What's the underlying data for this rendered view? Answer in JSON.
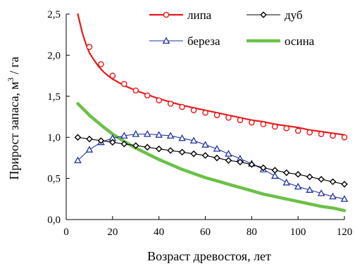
{
  "chart_data": {
    "type": "line",
    "xlabel": "Возраст  древостоя, лет",
    "ylabel_main": "Прирост  запаса, м",
    "ylabel_sup": "3",
    "ylabel_tail": " / га",
    "xlim": [
      0,
      120
    ],
    "ylim": [
      0,
      2.5
    ],
    "xticks": [
      0,
      20,
      40,
      60,
      80,
      100,
      120
    ],
    "yticks": [
      0,
      0.5,
      1.0,
      1.5,
      2.0,
      2.5
    ],
    "xtick_labels": [
      "0",
      "20",
      "40",
      "60",
      "80",
      "100",
      "120"
    ],
    "ytick_labels": [
      "0,0",
      "0,5",
      "1,0",
      "1,5",
      "2,0",
      "2,5"
    ],
    "grid": false,
    "legend_position": "top-right",
    "series": [
      {
        "name": "липа",
        "color": "#e8191a",
        "marker": "circle",
        "line_x": [
          5,
          6,
          7,
          8,
          9,
          10,
          12,
          14,
          16,
          18,
          20,
          25,
          30,
          35,
          40,
          45,
          50,
          55,
          60,
          65,
          70,
          75,
          80,
          85,
          90,
          95,
          100,
          105,
          110,
          115,
          120
        ],
        "line_y": [
          2.5,
          2.38,
          2.27,
          2.18,
          2.1,
          2.03,
          1.94,
          1.86,
          1.8,
          1.75,
          1.71,
          1.63,
          1.57,
          1.52,
          1.47,
          1.43,
          1.39,
          1.36,
          1.33,
          1.3,
          1.27,
          1.24,
          1.21,
          1.19,
          1.16,
          1.14,
          1.12,
          1.09,
          1.07,
          1.05,
          1.03
        ],
        "marker_x": [
          10,
          15,
          20,
          25,
          30,
          35,
          40,
          45,
          50,
          55,
          60,
          65,
          70,
          75,
          80,
          85,
          90,
          95,
          100,
          105,
          110,
          115,
          120
        ],
        "marker_y": [
          2.1,
          1.89,
          1.75,
          1.65,
          1.57,
          1.51,
          1.45,
          1.41,
          1.37,
          1.33,
          1.3,
          1.27,
          1.24,
          1.21,
          1.18,
          1.16,
          1.13,
          1.11,
          1.08,
          1.06,
          1.04,
          1.02,
          1.0
        ]
      },
      {
        "name": "дуб",
        "color": "#000000",
        "marker": "diamond",
        "line_x": [
          5,
          10,
          15,
          20,
          25,
          30,
          35,
          40,
          45,
          50,
          55,
          60,
          65,
          70,
          75,
          80,
          85,
          90,
          95,
          100,
          105,
          110,
          115,
          120
        ],
        "line_y": [
          1.0,
          0.98,
          0.96,
          0.94,
          0.92,
          0.9,
          0.88,
          0.86,
          0.84,
          0.82,
          0.8,
          0.78,
          0.75,
          0.72,
          0.7,
          0.67,
          0.63,
          0.6,
          0.57,
          0.55,
          0.52,
          0.49,
          0.46,
          0.43
        ],
        "marker_x": [
          5,
          10,
          15,
          20,
          25,
          30,
          35,
          40,
          45,
          50,
          55,
          60,
          65,
          70,
          75,
          80,
          85,
          90,
          95,
          100,
          105,
          110,
          115,
          120
        ],
        "marker_y": [
          1.0,
          0.98,
          0.96,
          0.94,
          0.92,
          0.9,
          0.88,
          0.86,
          0.84,
          0.82,
          0.8,
          0.78,
          0.75,
          0.72,
          0.7,
          0.67,
          0.63,
          0.6,
          0.57,
          0.55,
          0.52,
          0.49,
          0.46,
          0.43
        ]
      },
      {
        "name": "береза",
        "color": "#2330a0",
        "marker": "triangle",
        "line_x": [
          5,
          10,
          15,
          20,
          25,
          30,
          35,
          40,
          45,
          50,
          55,
          60,
          65,
          70,
          75,
          80,
          85,
          90,
          95,
          100,
          105,
          110,
          115,
          120
        ],
        "line_y": [
          0.72,
          0.85,
          0.94,
          0.99,
          1.02,
          1.04,
          1.04,
          1.03,
          1.02,
          0.99,
          0.96,
          0.91,
          0.86,
          0.8,
          0.74,
          0.68,
          0.61,
          0.53,
          0.45,
          0.4,
          0.36,
          0.32,
          0.28,
          0.25
        ],
        "marker_x": [
          5,
          10,
          15,
          20,
          25,
          30,
          35,
          40,
          45,
          50,
          55,
          60,
          65,
          70,
          75,
          80,
          85,
          90,
          95,
          100,
          105,
          110,
          115,
          120
        ],
        "marker_y": [
          0.72,
          0.85,
          0.94,
          0.99,
          1.02,
          1.04,
          1.04,
          1.03,
          1.02,
          0.99,
          0.96,
          0.91,
          0.86,
          0.8,
          0.74,
          0.68,
          0.61,
          0.53,
          0.45,
          0.4,
          0.36,
          0.32,
          0.28,
          0.25
        ]
      },
      {
        "name": "осина",
        "color": "#6cc048",
        "marker": "none",
        "line_x": [
          5,
          10,
          15,
          20,
          25,
          30,
          35,
          40,
          45,
          50,
          55,
          60,
          65,
          70,
          75,
          80,
          85,
          90,
          95,
          100,
          105,
          110,
          115,
          120
        ],
        "line_y": [
          1.41,
          1.27,
          1.15,
          1.04,
          0.95,
          0.87,
          0.8,
          0.73,
          0.67,
          0.61,
          0.56,
          0.51,
          0.47,
          0.43,
          0.39,
          0.35,
          0.31,
          0.28,
          0.25,
          0.22,
          0.19,
          0.16,
          0.14,
          0.11
        ]
      }
    ]
  }
}
